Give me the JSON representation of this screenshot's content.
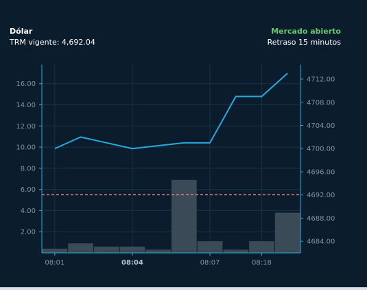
{
  "header": {
    "title": "Dólar",
    "trm_text": "TRM vigente: 4,692.04",
    "market_status": "Mercado abierto",
    "delay_text": "Retraso 15 minutos"
  },
  "colors": {
    "background": "#0b1c2c",
    "line": "#29a9e0",
    "bars": "#3a4a57",
    "reference_line": "#f07c7c",
    "status": "#67c96b",
    "axis": "#29a9e0"
  },
  "chart_data": {
    "type": "bar+line",
    "reference_value": 4692.04,
    "x_tick_labels": [
      "08:01",
      "08:04",
      "08:07",
      "08:18"
    ],
    "bold_tick": "08:04",
    "left_axis": {
      "ticks": [
        "2.00",
        "4.00",
        "6.00",
        "8.00",
        "10.00",
        "12.00",
        "14.00",
        "16.00"
      ],
      "tick_values": [
        2,
        4,
        6,
        8,
        10,
        12,
        14,
        16
      ],
      "range": [
        0,
        17.8
      ]
    },
    "right_axis": {
      "ticks": [
        "4684.00",
        "4688.00",
        "4692.00",
        "4696.00",
        "4700.00",
        "4704.00",
        "4708.00",
        "4712.00"
      ],
      "tick_values": [
        4684,
        4688,
        4692,
        4696,
        4700,
        4704,
        4708,
        4712
      ],
      "range": [
        4682,
        4714.5
      ]
    },
    "bars": [
      0.4,
      0.9,
      0.6,
      0.6,
      0.3,
      6.9,
      1.1,
      0.3,
      1.1,
      3.8
    ],
    "line": [
      4700.0,
      4702.0,
      4701.0,
      4700.0,
      4700.5,
      4701.0,
      4701.0,
      4709.0,
      4709.0,
      4713.0
    ],
    "grid": true
  }
}
